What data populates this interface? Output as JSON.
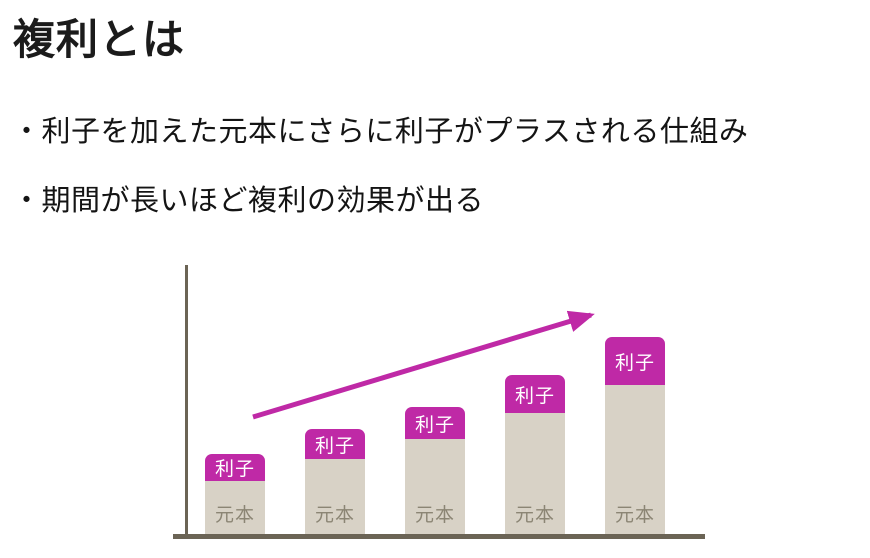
{
  "title": "複利とは",
  "bullets": [
    "・利子を加えた元本にさらに利子がプラスされる仕組み",
    "・期間が長いほど複利の効果が出る"
  ],
  "chart_data": {
    "type": "bar",
    "stacked": true,
    "bar_count": 5,
    "series": [
      {
        "name": "元本",
        "values": [
          53,
          75,
          95,
          121,
          149
        ]
      },
      {
        "name": "利子",
        "values": [
          27,
          30,
          32,
          38,
          48
        ]
      }
    ],
    "value_units": "relative pixel heights (no numeric axis shown)",
    "segment_labels": {
      "principal": "元本",
      "interest": "利子"
    },
    "axes": {
      "x_tick_labels": [],
      "y_tick_labels": [],
      "gridlines": false
    },
    "annotations": [
      {
        "type": "trend-arrow",
        "direction": "up-right"
      }
    ],
    "colors": {
      "principal_fill": "#d8d2c6",
      "principal_text": "#8b8574",
      "interest_fill": "#bf29a6",
      "interest_text": "#ffffff",
      "axis": "#6b6455",
      "arrow": "#bf29a6"
    }
  }
}
